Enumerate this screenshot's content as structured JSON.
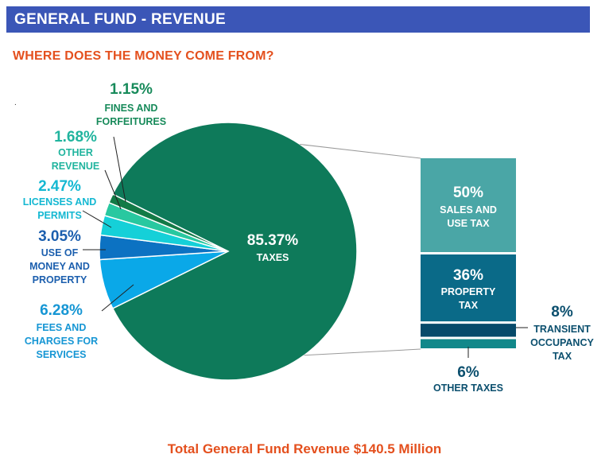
{
  "header": {
    "title": "GENERAL FUND - REVENUE"
  },
  "subtitle": "WHERE DOES THE MONEY COME FROM?",
  "stray_mark": ".",
  "footer": "Total General Fund Revenue $140.5 Million",
  "chart_data": [
    {
      "type": "pie",
      "slices": [
        {
          "label": "TAXES",
          "value": 85.37,
          "pct_text": "85.37%",
          "color": "#0e7a5a",
          "label_color": "#ffffff",
          "lines": [
            "TAXES"
          ]
        },
        {
          "label": "FEES AND CHARGES FOR SERVICES",
          "value": 6.28,
          "pct_text": "6.28%",
          "color": "#0aa8e8",
          "label_color": "#1696d4",
          "lines": [
            "FEES AND",
            "CHARGES FOR",
            "SERVICES"
          ]
        },
        {
          "label": "USE OF MONEY AND PROPERTY",
          "value": 3.05,
          "pct_text": "3.05%",
          "color": "#0c72c2",
          "label_color": "#1c5fae",
          "lines": [
            "USE OF",
            "MONEY AND",
            "PROPERTY"
          ]
        },
        {
          "label": "LICENSES AND PERMITS",
          "value": 2.47,
          "pct_text": "2.47%",
          "color": "#15d0d8",
          "label_color": "#14b8d2",
          "lines": [
            "LICENSES AND",
            "PERMITS"
          ]
        },
        {
          "label": "OTHER REVENUE",
          "value": 1.68,
          "pct_text": "1.68%",
          "color": "#28c8a0",
          "label_color": "#20b49e",
          "lines": [
            "OTHER",
            "REVENUE"
          ]
        },
        {
          "label": "FINES AND FORFEITURES",
          "value": 1.15,
          "pct_text": "1.15%",
          "color": "#127a46",
          "label_color": "#178a5a",
          "lines": [
            "FINES AND",
            "FORFEITURES"
          ]
        }
      ]
    },
    {
      "type": "bar",
      "stacked": true,
      "parent": "TAXES",
      "segments": [
        {
          "label": "SALES AND USE TAX",
          "value": 50,
          "pct_text": "50%",
          "color": "#4aa6a6",
          "lines": [
            "SALES AND",
            "USE TAX"
          ]
        },
        {
          "label": "PROPERTY TAX",
          "value": 36,
          "pct_text": "36%",
          "color": "#0a6a88",
          "lines": [
            "PROPERTY",
            "TAX"
          ]
        },
        {
          "label": "TRANSIENT OCCUPANCY TAX",
          "value": 8,
          "pct_text": "8%",
          "color": "#074a6a",
          "lines": [
            "TRANSIENT",
            "OCCUPANCY",
            "TAX"
          ]
        },
        {
          "label": "OTHER TAXES",
          "value": 6,
          "pct_text": "6%",
          "color": "#11888a",
          "lines": [
            "OTHER TAXES"
          ]
        }
      ]
    }
  ]
}
